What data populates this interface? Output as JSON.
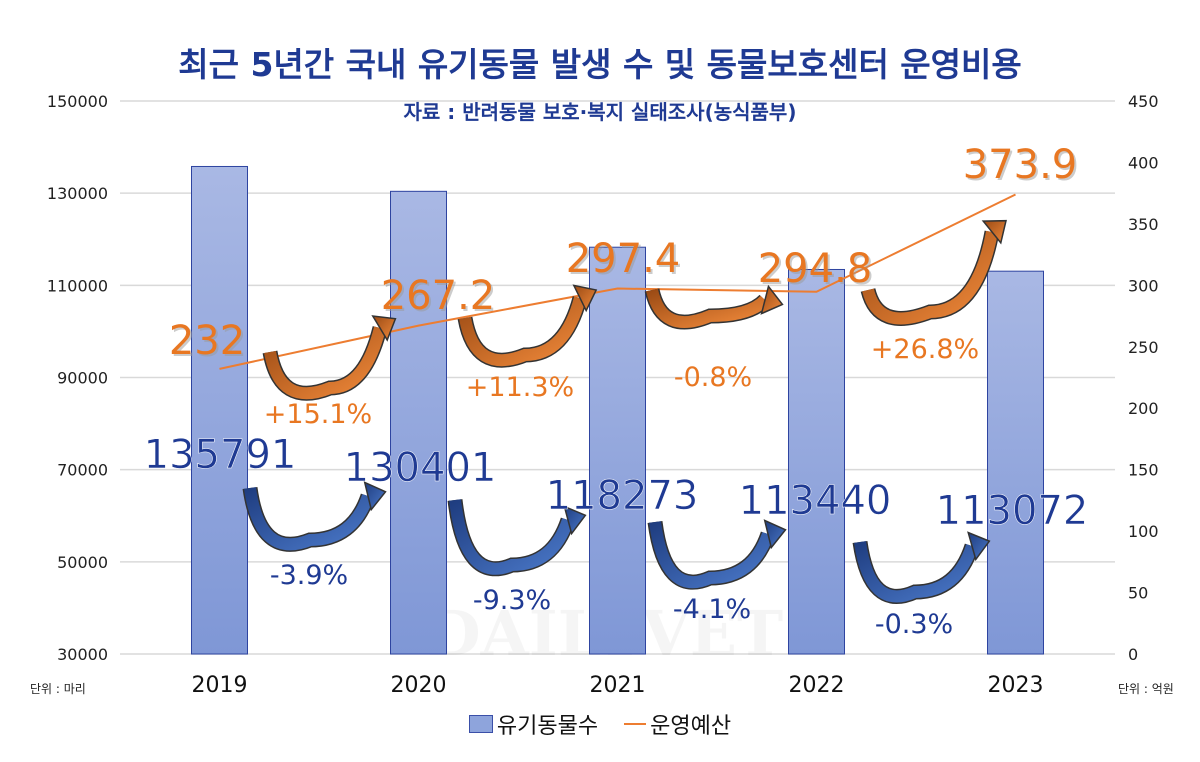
{
  "title": "최근 5년간 국내 유기동물 발생 수 및 동물보호센터 운영비용",
  "subtitle": "자료 : 반려동물 보호·복지 실태조사(농식품부)",
  "unit_left": "단위 : 마리",
  "unit_right": "단위 : 억원",
  "watermark": "DAILYVET",
  "chart_data": {
    "type": "bar+line",
    "categories": [
      "2019",
      "2020",
      "2021",
      "2022",
      "2023"
    ],
    "series": [
      {
        "name": "유기동물수",
        "type": "bar",
        "axis": "left",
        "color": "#8ea4dc",
        "values": [
          135791,
          130401,
          118273,
          113440,
          113072
        ],
        "labels": [
          "135791",
          "130401",
          "118273",
          "113440",
          "113072"
        ],
        "changes": [
          "-3.9%",
          "-9.3%",
          "-4.1%",
          "-0.3%"
        ]
      },
      {
        "name": "운영예산",
        "type": "line",
        "axis": "right",
        "color": "#ed7d31",
        "values": [
          232,
          267.2,
          297.4,
          294.8,
          373.9
        ],
        "labels": [
          "232",
          "267.2",
          "297.4",
          "294.8",
          "373.9"
        ],
        "changes": [
          "+15.1%",
          "+11.3%",
          "-0.8%",
          "+26.8%"
        ]
      }
    ],
    "y_left": {
      "min": 30000,
      "max": 150000,
      "ticks": [
        "30000",
        "50000",
        "70000",
        "90000",
        "110000",
        "130000",
        "150000"
      ]
    },
    "y_right": {
      "min": 0,
      "max": 450,
      "ticks": [
        "0",
        "50",
        "100",
        "150",
        "200",
        "250",
        "300",
        "350",
        "400",
        "450"
      ]
    },
    "grid": true,
    "legend": "bottom"
  }
}
